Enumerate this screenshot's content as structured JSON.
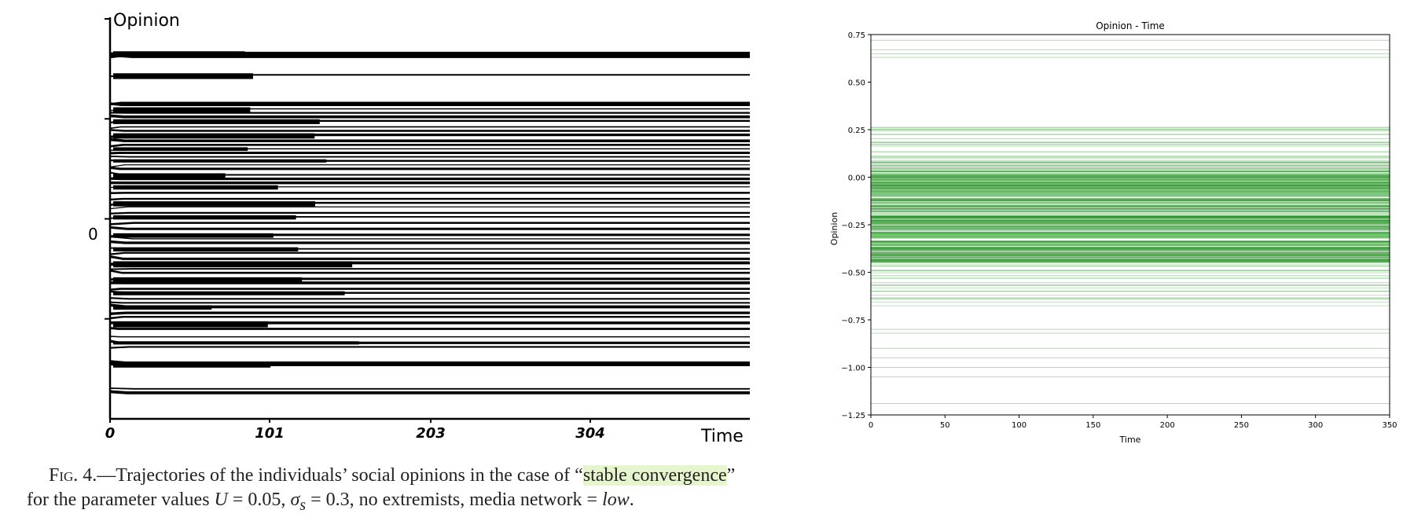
{
  "chart_data": [
    {
      "type": "line",
      "ylabel": "Opinion",
      "xlabel": "Time",
      "y_tick_labels": [
        "0"
      ],
      "x_tick_labels": [
        "0",
        "101",
        "203",
        "304"
      ],
      "x_ticks": [
        0,
        101,
        203,
        304
      ],
      "xlim": [
        0,
        405
      ],
      "ylim": [
        -1,
        1
      ],
      "y_ticks": [
        -0.5,
        0,
        0.5
      ],
      "grid": false,
      "color": "#000000",
      "series_note_values": {
        "final_levels": [
          0.83,
          0.82,
          0.81,
          0.72,
          0.58,
          0.57,
          0.55,
          0.53,
          0.51,
          0.49,
          0.46,
          0.44,
          0.42,
          0.39,
          0.37,
          0.35,
          0.33,
          0.31,
          0.29,
          0.27,
          0.25,
          0.22,
          0.2,
          0.18,
          0.16,
          0.13,
          0.1,
          0.08,
          0.06,
          0.03,
          0.01,
          -0.02,
          -0.05,
          -0.08,
          -0.1,
          -0.12,
          -0.15,
          -0.17,
          -0.2,
          -0.22,
          -0.25,
          -0.27,
          -0.3,
          -0.32,
          -0.35,
          -0.37,
          -0.4,
          -0.42,
          -0.44,
          -0.47,
          -0.49,
          -0.52,
          -0.55,
          -0.59,
          -0.62,
          -0.64,
          -0.72,
          -0.73,
          -0.85,
          -0.87
        ]
      }
    },
    {
      "type": "line",
      "title": "Opinion - Time",
      "xlabel": "Time",
      "ylabel": "Opinion",
      "xlim": [
        0,
        350
      ],
      "ylim": [
        -1.25,
        0.75
      ],
      "x_ticks": [
        0,
        50,
        100,
        150,
        200,
        250,
        300,
        350
      ],
      "x_tick_labels": [
        "0",
        "50",
        "100",
        "150",
        "200",
        "250",
        "300",
        "350"
      ],
      "y_ticks": [
        0.75,
        0.5,
        0.25,
        0.0,
        -0.25,
        -0.5,
        -0.75,
        -1.0,
        -1.25
      ],
      "y_tick_labels": [
        "0.75",
        "0.50",
        "0.25",
        "0.00",
        "−0.25",
        "−0.50",
        "−0.75",
        "−1.00",
        "−1.25"
      ],
      "grid": false,
      "color": "#008000",
      "series": [
        {
          "values_range": [
            -0.68,
            0.27
          ],
          "dense_range": [
            -0.45,
            0.05
          ]
        }
      ]
    }
  ],
  "caption": {
    "fig": "Fig.",
    "num": " 4.—Trajectories of the individuals’ social opinions in the case of “",
    "highlight": "stable convergence",
    "end1": "”",
    "line2a": "for the parameter values ",
    "U": "U",
    "line2b": " = 0.05, ",
    "sigma": "σ",
    "sub": "s",
    "line2c": " = 0.3, no extremists, media network = ",
    "low": "low",
    "line2d": "."
  }
}
